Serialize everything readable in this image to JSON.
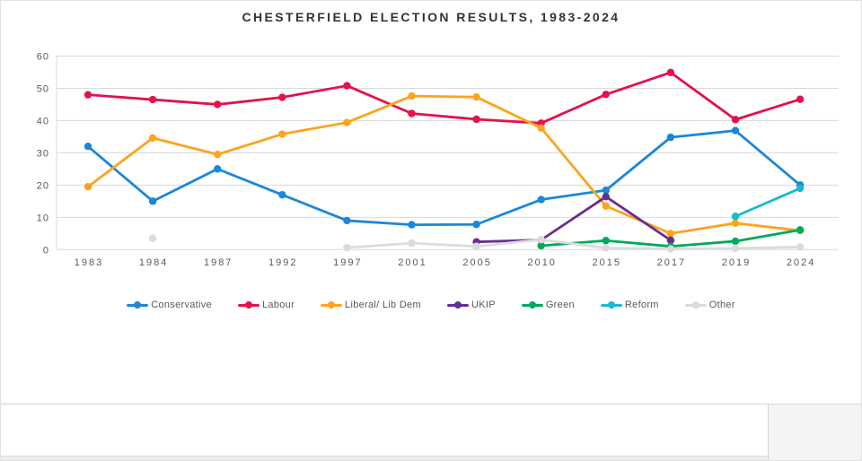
{
  "page": {
    "title": "CHESTERFIELD ELECTION RESULTS, 1983-2024"
  },
  "chart_data": {
    "type": "line",
    "title": "CHESTERFIELD ELECTION RESULTS, 1983-2024",
    "categories": [
      "1983",
      "1984",
      "1987",
      "1992",
      "1997",
      "2001",
      "2005",
      "2010",
      "2015",
      "2017",
      "2019",
      "2024"
    ],
    "xlabel": "",
    "ylabel": "",
    "ylim": [
      0,
      60
    ],
    "yticks": [
      0,
      10,
      20,
      30,
      40,
      50,
      60
    ],
    "grid": "horizontal",
    "gridline_color": "#D9D9D9",
    "tick_label_color": "#595959",
    "legend_position": "bottom",
    "series": [
      {
        "name": "Conservative",
        "color": "#1B87D8",
        "values": [
          32,
          15,
          25,
          17,
          9,
          7.7,
          7.8,
          15.5,
          18.4,
          34.8,
          36.9,
          20
        ]
      },
      {
        "name": "Labour",
        "color": "#E4114B",
        "values": [
          48,
          46.5,
          45,
          47.2,
          50.8,
          42.2,
          40.4,
          39.2,
          48.1,
          54.9,
          40.3,
          46.6
        ]
      },
      {
        "name": "Liberal/ Lib Dem",
        "color": "#FCA41C",
        "values": [
          19.5,
          34.6,
          29.5,
          35.8,
          39.4,
          47.6,
          47.3,
          37.7,
          13.5,
          5,
          8.2,
          5.9
        ]
      },
      {
        "name": "UKIP",
        "color": "#662D91",
        "values": [
          null,
          null,
          null,
          null,
          null,
          null,
          2.4,
          3,
          16.4,
          2.9,
          null,
          null
        ]
      },
      {
        "name": "Green",
        "color": "#00A95C",
        "values": [
          null,
          null,
          null,
          null,
          null,
          null,
          null,
          1.2,
          2.8,
          1,
          2.6,
          6.1
        ]
      },
      {
        "name": "Reform",
        "color": "#19B9CF",
        "values": [
          null,
          null,
          null,
          null,
          null,
          null,
          null,
          null,
          null,
          null,
          10.3,
          19
        ]
      },
      {
        "name": "Other",
        "color": "#DBDBDB",
        "values": [
          null,
          3.5,
          null,
          null,
          0.6,
          2,
          1,
          3.1,
          0.5,
          0.2,
          0.4,
          0.8
        ]
      }
    ]
  }
}
